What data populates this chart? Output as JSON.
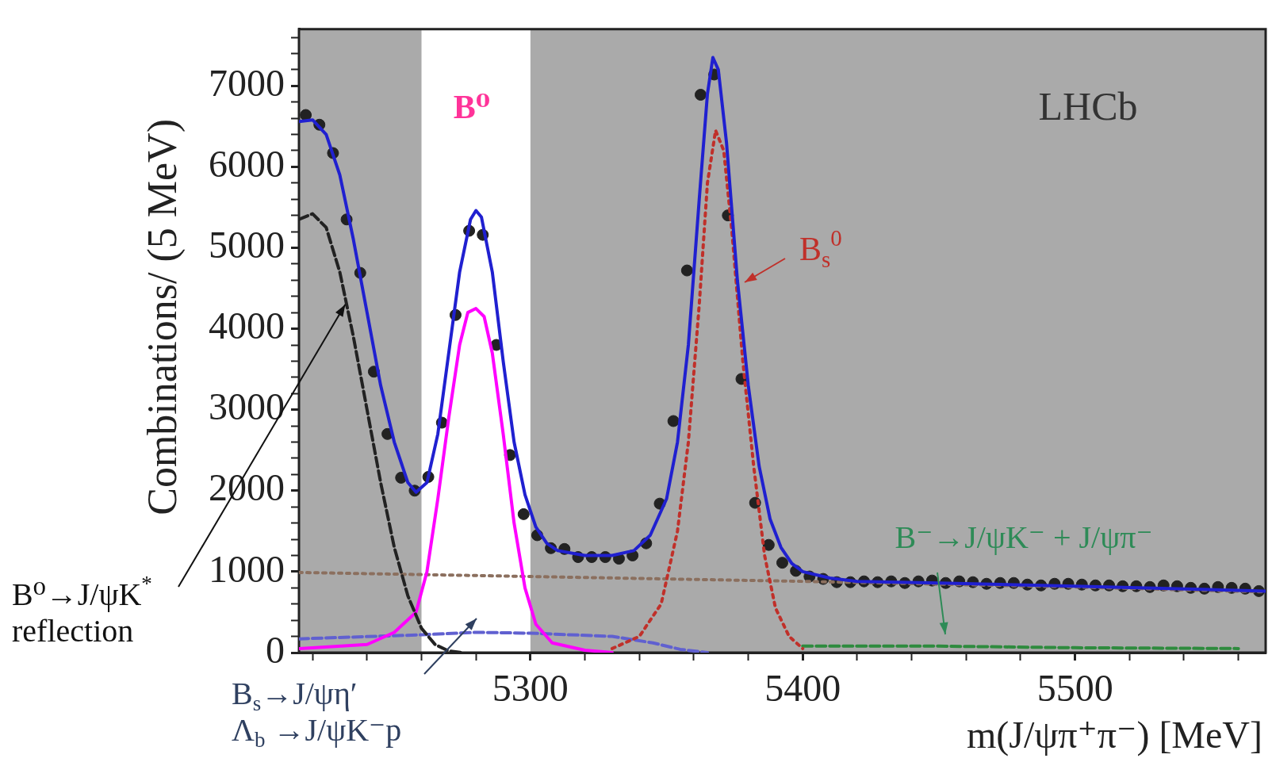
{
  "chart_data": {
    "type": "line",
    "xlabel": "m(J/ψπ⁺π⁻) [MeV]",
    "ylabel": "Combinations/ (5 MeV)",
    "xlim": [
      5215,
      5570
    ],
    "ylim": [
      0,
      7700
    ],
    "xticks": [
      {
        "value": 5220,
        "label": null
      },
      {
        "value": 5240,
        "label": null
      },
      {
        "value": 5260,
        "label": null
      },
      {
        "value": 5280,
        "label": null
      },
      5300,
      {
        "value": 5320,
        "label": null
      },
      {
        "value": 5340,
        "label": null
      },
      {
        "value": 5360,
        "label": null
      },
      {
        "value": 5380,
        "label": null
      },
      5400,
      {
        "value": 5420,
        "label": null
      },
      {
        "value": 5440,
        "label": null
      },
      {
        "value": 5460,
        "label": null
      },
      {
        "value": 5480,
        "label": null
      },
      5500,
      {
        "value": 5520,
        "label": null
      },
      {
        "value": 5540,
        "label": null
      },
      {
        "value": 5560,
        "label": null
      }
    ],
    "yticks": [
      0,
      {
        "value": 200,
        "label": null
      },
      {
        "value": 400,
        "label": null
      },
      {
        "value": 600,
        "label": null
      },
      {
        "value": 800,
        "label": null
      },
      1000,
      {
        "value": 1200,
        "label": null
      },
      {
        "value": 1400,
        "label": null
      },
      {
        "value": 1600,
        "label": null
      },
      {
        "value": 1800,
        "label": null
      },
      2000,
      {
        "value": 2200,
        "label": null
      },
      {
        "value": 2400,
        "label": null
      },
      {
        "value": 2600,
        "label": null
      },
      {
        "value": 2800,
        "label": null
      },
      3000,
      {
        "value": 3200,
        "label": null
      },
      {
        "value": 3400,
        "label": null
      },
      {
        "value": 3600,
        "label": null
      },
      {
        "value": 3800,
        "label": null
      },
      4000,
      {
        "value": 4200,
        "label": null
      },
      {
        "value": 4400,
        "label": null
      },
      {
        "value": 4600,
        "label": null
      },
      {
        "value": 4800,
        "label": null
      },
      5000,
      {
        "value": 5200,
        "label": null
      },
      {
        "value": 5400,
        "label": null
      },
      {
        "value": 5600,
        "label": null
      },
      {
        "value": 5800,
        "label": null
      },
      6000,
      {
        "value": 6200,
        "label": null
      },
      {
        "value": 6400,
        "label": null
      },
      {
        "value": 6600,
        "label": null
      },
      {
        "value": 6800,
        "label": null
      },
      7000,
      {
        "value": 7200,
        "label": null
      },
      {
        "value": 7400,
        "label": null
      },
      {
        "value": 7600,
        "label": null
      }
    ],
    "grid": false,
    "legend": false,
    "bands": [
      {
        "axis": "x",
        "from": 5215,
        "to": 5260,
        "color": "#aaaaaa"
      },
      {
        "axis": "x",
        "from": 5300,
        "to": 5570,
        "color": "#aaaaaa"
      }
    ],
    "series": [
      {
        "color": "#2020d0",
        "line_style": "solid",
        "x": [
          5215,
          5220,
          5225,
          5230,
          5235,
          5240,
          5245,
          5250,
          5255,
          5258,
          5262,
          5266,
          5270,
          5274,
          5278,
          5280,
          5282,
          5286,
          5290,
          5294,
          5298,
          5302,
          5306,
          5310,
          5320,
          5330,
          5338,
          5344,
          5350,
          5354,
          5358,
          5362,
          5365,
          5367,
          5369,
          5372,
          5376,
          5380,
          5384,
          5388,
          5392,
          5396,
          5400,
          5410,
          5420,
          5450,
          5500,
          5570
        ],
        "values": [
          6560,
          6580,
          6400,
          5900,
          5100,
          4200,
          3300,
          2600,
          2100,
          1980,
          2100,
          2700,
          3700,
          4700,
          5350,
          5460,
          5380,
          4700,
          3600,
          2600,
          1950,
          1550,
          1350,
          1260,
          1200,
          1200,
          1260,
          1450,
          1900,
          2600,
          3800,
          5600,
          6900,
          7350,
          7200,
          6300,
          4600,
          3300,
          2300,
          1650,
          1300,
          1100,
          1000,
          920,
          880,
          860,
          820,
          760
        ]
      },
      {
        "color": "#222222",
        "line_style": "dashed",
        "x": [
          5215,
          5220,
          5225,
          5230,
          5235,
          5240,
          5245,
          5250,
          5255,
          5260,
          5265,
          5270,
          5275
        ],
        "values": [
          5350,
          5420,
          5250,
          4700,
          3900,
          3000,
          2100,
          1300,
          700,
          300,
          100,
          20,
          0
        ]
      },
      {
        "color": "#ff00ff",
        "line_style": "solid",
        "x": [
          5215,
          5240,
          5250,
          5258,
          5262,
          5266,
          5270,
          5274,
          5277,
          5280,
          5283,
          5286,
          5290,
          5294,
          5298,
          5302,
          5308,
          5320,
          5330
        ],
        "values": [
          50,
          100,
          250,
          500,
          1000,
          1900,
          2900,
          3800,
          4200,
          4250,
          4150,
          3700,
          2700,
          1600,
          800,
          350,
          120,
          30,
          0
        ]
      },
      {
        "color": "#c0302a",
        "line_style": "dotted",
        "x": [
          5330,
          5340,
          5348,
          5354,
          5358,
          5362,
          5365,
          5368,
          5371,
          5374,
          5378,
          5382,
          5386,
          5390,
          5395,
          5400
        ],
        "values": [
          50,
          200,
          600,
          1500,
          2600,
          4300,
          5800,
          6450,
          6200,
          5200,
          3600,
          2300,
          1200,
          550,
          200,
          50
        ]
      },
      {
        "color": "#8b6f5e",
        "line_style": "dotted",
        "x": [
          5215,
          5300,
          5400,
          5500,
          5570
        ],
        "values": [
          990,
          940,
          880,
          810,
          750
        ]
      },
      {
        "color": "#6060d0",
        "line_style": "dashed",
        "x": [
          5215,
          5260,
          5280,
          5300,
          5330,
          5345,
          5355,
          5365
        ],
        "values": [
          170,
          220,
          250,
          240,
          200,
          120,
          40,
          0
        ]
      },
      {
        "color": "#2e8b3e",
        "line_style": "dashed",
        "x": [
          5400,
          5450,
          5500,
          5560
        ],
        "values": [
          80,
          80,
          60,
          50
        ]
      },
      {
        "type": "scatter",
        "color": "#222222",
        "marker": "circle",
        "x": [
          5217.5,
          5222.5,
          5227.5,
          5232.5,
          5237.5,
          5242.5,
          5247.5,
          5252.5,
          5257.5,
          5262.5,
          5267.5,
          5272.5,
          5277.5,
          5282.5,
          5287.5,
          5292.5,
          5297.5,
          5302.5,
          5307.5,
          5312.5,
          5317.5,
          5322.5,
          5327.5,
          5332.5,
          5337.5,
          5342.5,
          5347.5,
          5352.5,
          5357.5,
          5362.5,
          5367.5,
          5372.5,
          5377.5,
          5382.5,
          5387.5,
          5392.5,
          5397.5,
          5402.5,
          5407.5,
          5412.5,
          5417.5,
          5422.5,
          5427.5,
          5432.5,
          5437.5,
          5442.5,
          5447.5,
          5452.5,
          5457.5,
          5462.5,
          5467.5,
          5472.5,
          5477.5,
          5482.5,
          5487.5,
          5492.5,
          5497.5,
          5502.5,
          5507.5,
          5512.5,
          5517.5,
          5522.5,
          5527.5,
          5532.5,
          5537.5,
          5542.5,
          5547.5,
          5552.5,
          5557.5,
          5562.5,
          5567.5
        ],
        "values": [
          6640,
          6520,
          6170,
          5350,
          4690,
          3470,
          2700,
          2160,
          2000,
          2170,
          2840,
          4170,
          5210,
          5160,
          3800,
          2440,
          1710,
          1450,
          1290,
          1280,
          1180,
          1180,
          1180,
          1160,
          1200,
          1350,
          1840,
          2860,
          4720,
          6890,
          7140,
          5400,
          3380,
          1850,
          1330,
          1110,
          1010,
          940,
          910,
          870,
          870,
          880,
          870,
          880,
          860,
          880,
          890,
          860,
          880,
          870,
          850,
          860,
          860,
          840,
          830,
          850,
          850,
          840,
          830,
          830,
          820,
          820,
          810,
          830,
          820,
          800,
          790,
          810,
          800,
          790,
          760
        ]
      }
    ],
    "annotations": [
      "B⁰",
      "B$_{s}$$^{0}$",
      {
        "text": "B⁰→J/ψK$^{*}$\nreflection",
        "x": 5232,
        "y": 4300
      },
      "B⁻→J/ψK⁻ + J/ψπ⁻",
      "B$_{s}$→J/ψη′\nΛ$_{b}$ →J/ψK⁻p",
      "LHCb"
    ]
  }
}
